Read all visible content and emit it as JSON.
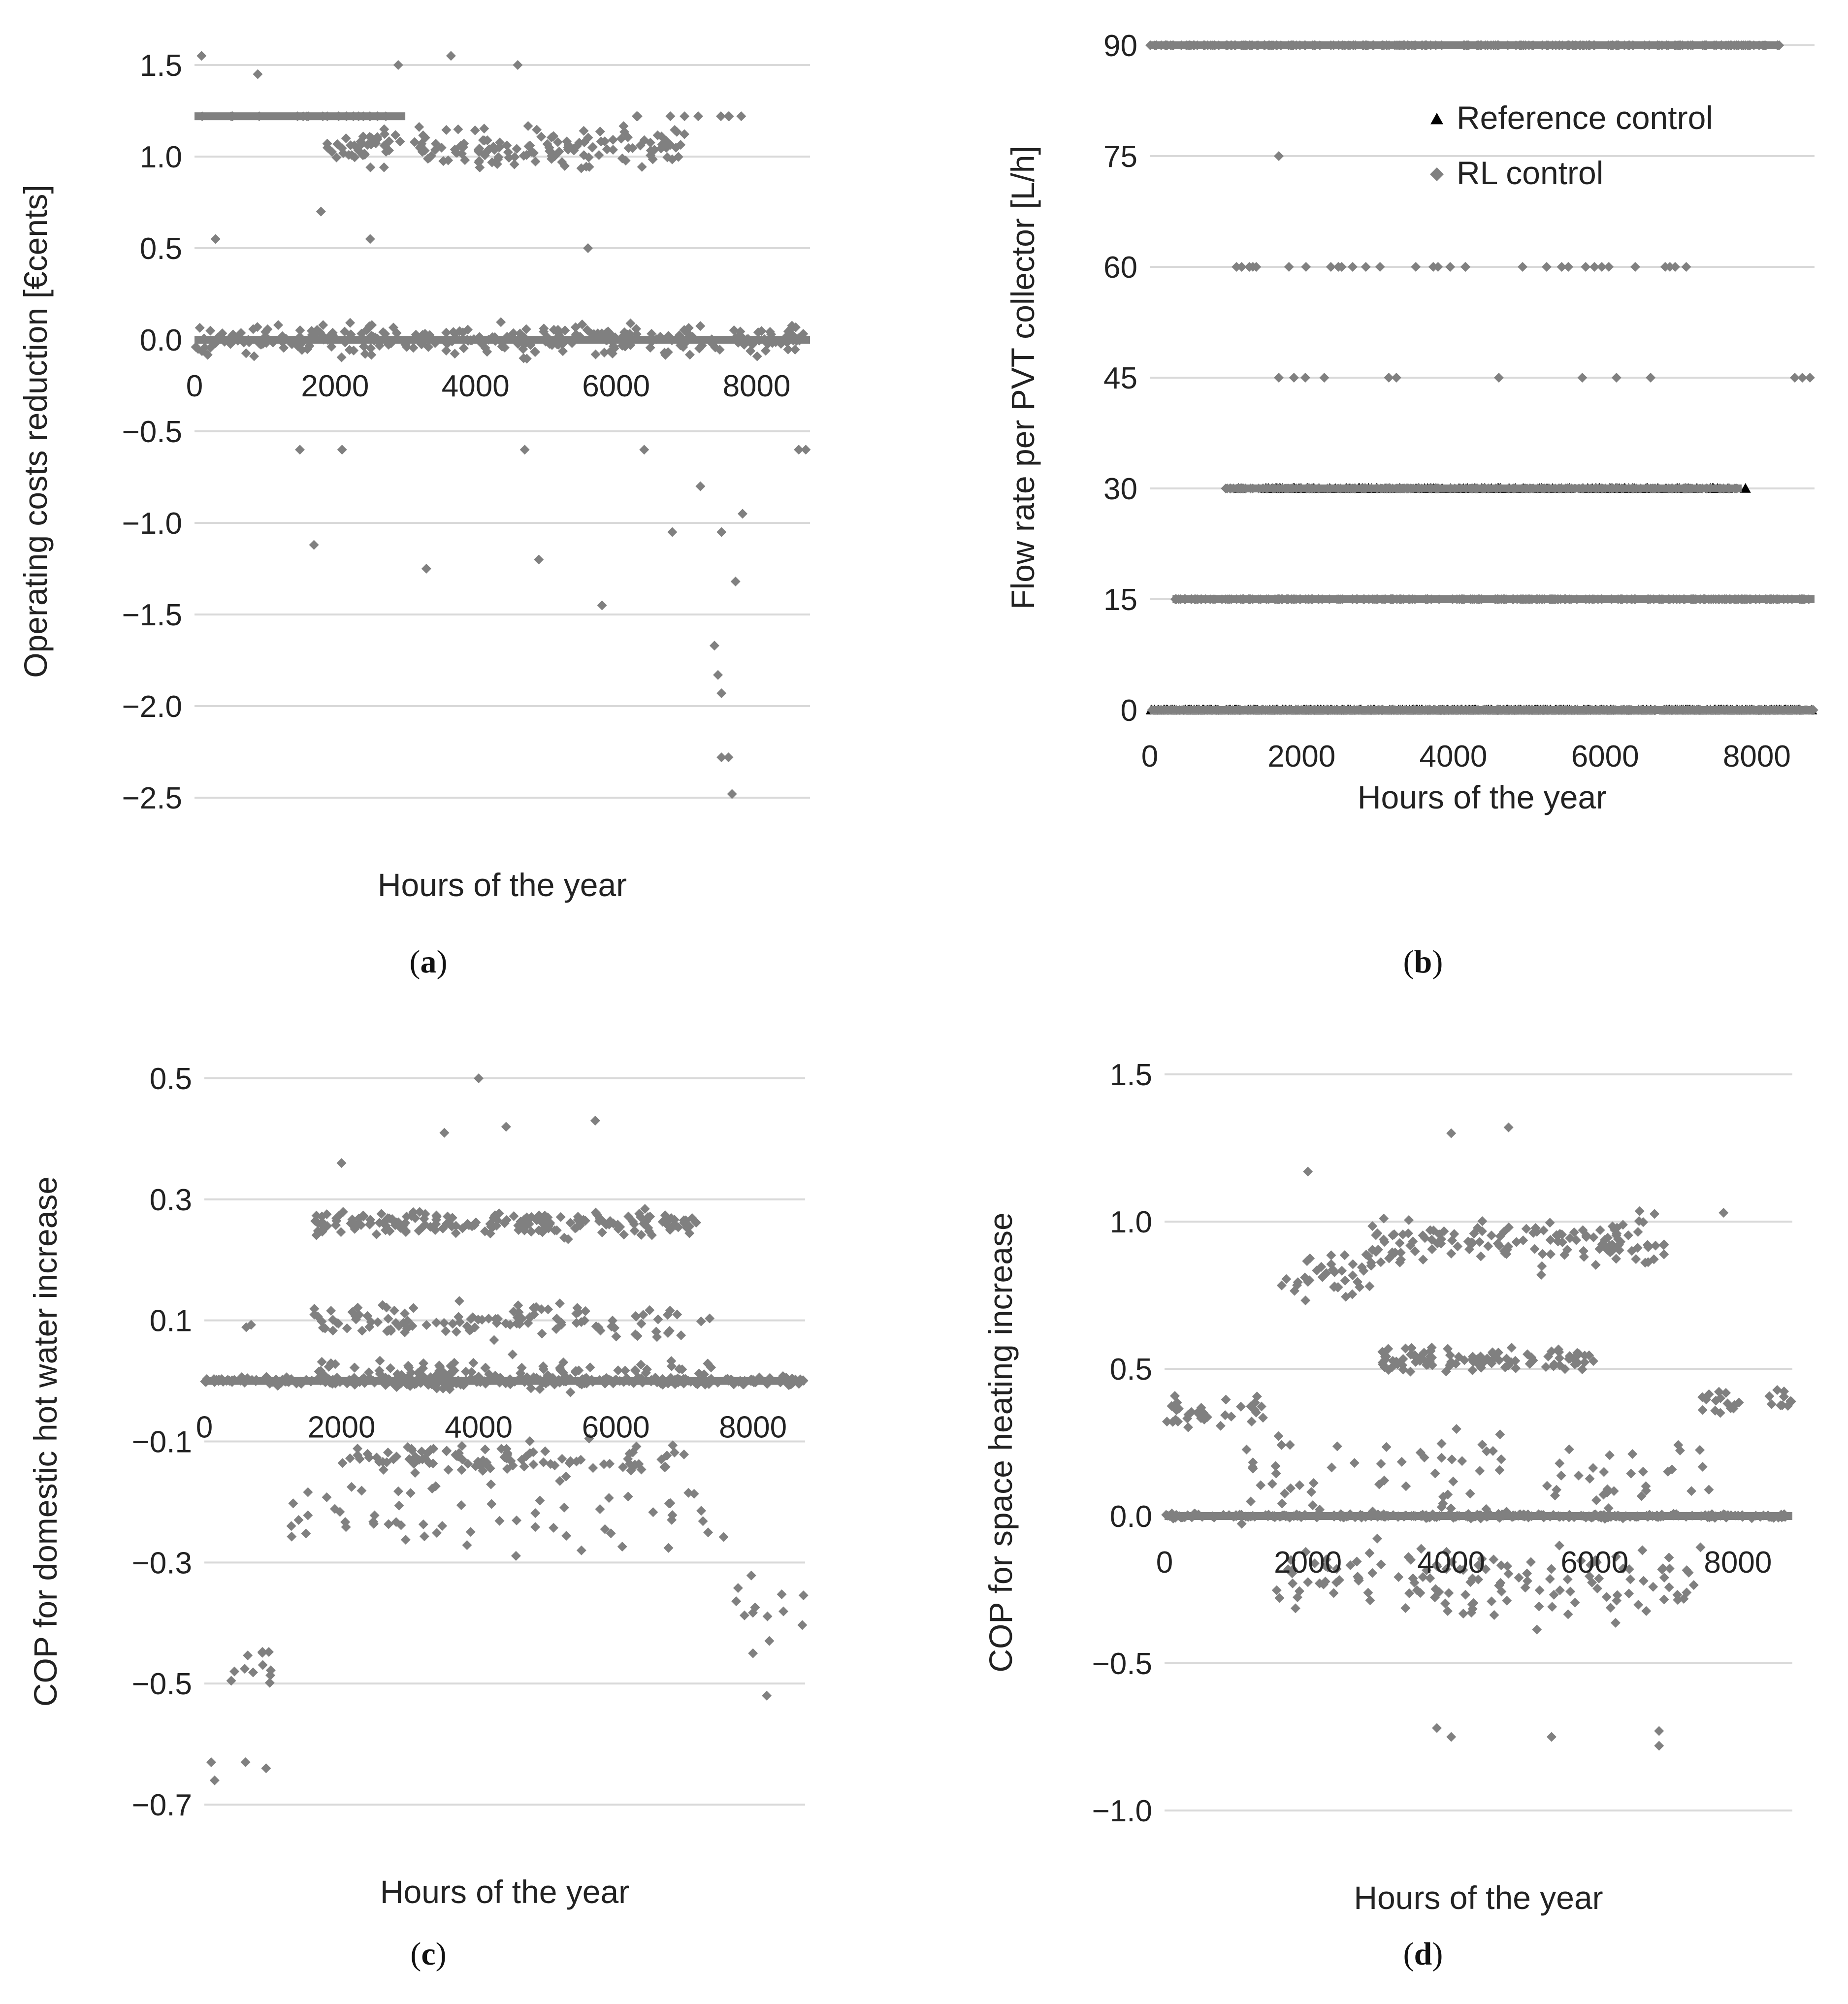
{
  "colors": {
    "grid": "#d9d9d9",
    "rl_marker": "#808080",
    "ref_marker": "#000000"
  },
  "chart_data": [
    {
      "id": "a",
      "type": "scatter",
      "caption_letter": "a",
      "xlabel": "Hours of the year",
      "ylabel": "Operating costs reduction [€cents]",
      "xlim": [
        0,
        8760
      ],
      "ylim": [
        -2.5,
        1.5
      ],
      "yticks": [
        1.5,
        1.0,
        0.5,
        0.0,
        -0.5,
        -1.0,
        -1.5,
        -2.0,
        -2.5
      ],
      "ytick_labels": [
        "1.5",
        "1.0",
        "0.5",
        "0.0",
        "−0.5",
        "−1.0",
        "−1.5",
        "−2.0",
        "−2.5"
      ],
      "xticks": [
        0,
        2000,
        4000,
        6000,
        8000
      ],
      "xtick_labels": [
        "0",
        "2000",
        "4000",
        "6000",
        "8000"
      ],
      "x_tick_labels_at_y": 0.0,
      "series": [
        {
          "name": "RL control",
          "marker": "diamond",
          "bands": [
            {
              "x": [
                0,
                8760
              ],
              "value": 0.0,
              "spread": 0.12,
              "density": 1.0,
              "line": true
            },
            {
              "x": [
                0,
                3000
              ],
              "value": 1.22,
              "spread": 0.0,
              "density": 0.2,
              "line": true
            },
            {
              "x": [
                1800,
                7000
              ],
              "value": 1.05,
              "spread": 0.15,
              "density": 1.0
            },
            {
              "x": [
                6000,
                7800
              ],
              "value": 1.22,
              "spread": 0.0,
              "density": 0.15
            }
          ],
          "extra_points": [
            [
              100,
              1.55
            ],
            [
              900,
              1.45
            ],
            [
              2900,
              1.5
            ],
            [
              3650,
              1.55
            ],
            [
              4600,
              1.5
            ],
            [
              1800,
              0.7
            ],
            [
              5600,
              0.5
            ],
            [
              300,
              0.55
            ],
            [
              2500,
              0.55
            ],
            [
              1700,
              -1.12
            ],
            [
              3300,
              -1.25
            ],
            [
              4900,
              -1.2
            ],
            [
              5800,
              -1.45
            ],
            [
              7200,
              -0.8
            ],
            [
              7500,
              -1.05
            ],
            [
              7800,
              -0.95
            ],
            [
              7700,
              -1.32
            ],
            [
              7400,
              -1.67
            ],
            [
              7450,
              -1.83
            ],
            [
              7500,
              -1.93
            ],
            [
              7500,
              -2.28
            ],
            [
              7600,
              -2.28
            ],
            [
              7650,
              -2.48
            ],
            [
              8600,
              -0.6
            ],
            [
              8700,
              -0.6
            ],
            [
              1500,
              -0.6
            ],
            [
              2100,
              -0.6
            ],
            [
              6400,
              -0.6
            ],
            [
              4700,
              -0.6
            ],
            [
              6800,
              -1.05
            ]
          ]
        }
      ]
    },
    {
      "id": "b",
      "type": "scatter",
      "caption_letter": "b",
      "xlabel": "Hours of the year",
      "ylabel": "Flow rate per PVT collector [L/h]",
      "xlim": [
        0,
        8760
      ],
      "ylim": [
        0,
        90
      ],
      "yticks": [
        90,
        75,
        60,
        45,
        30,
        15,
        0
      ],
      "ytick_labels": [
        "90",
        "75",
        "60",
        "45",
        "30",
        "15",
        "0"
      ],
      "xticks": [
        0,
        2000,
        4000,
        6000,
        8000
      ],
      "xtick_labels": [
        "0",
        "2000",
        "4000",
        "6000",
        "8000"
      ],
      "legend": {
        "position": "top-right",
        "entries": [
          {
            "label": "Reference control",
            "marker": "triangle"
          },
          {
            "label": "RL control",
            "marker": "diamond"
          }
        ]
      },
      "series": [
        {
          "name": "Reference control",
          "marker": "triangle",
          "bands": [
            {
              "x": [
                1150,
                7700
              ],
              "value": 30,
              "spread": 0,
              "density": 0.5,
              "line": true
            },
            {
              "x": [
                0,
                8760
              ],
              "value": 0,
              "spread": 0,
              "density": 1.0,
              "line": true
            }
          ],
          "extra_points": [
            [
              7850,
              30
            ]
          ]
        },
        {
          "name": "RL control",
          "marker": "diamond",
          "bands": [
            {
              "x": [
                0,
                8300
              ],
              "value": 90,
              "spread": 0,
              "density": 0.9,
              "line": true
            },
            {
              "x": [
                1000,
                7300
              ],
              "value": 60,
              "spread": 0,
              "density": 0.15
            },
            {
              "x": [
                300,
                8760
              ],
              "value": 15,
              "spread": 0,
              "density": 1.0,
              "line": true
            },
            {
              "x": [
                1000,
                7800
              ],
              "value": 30,
              "spread": 0,
              "density": 1.0,
              "line": true
            },
            {
              "x": [
                0,
                8760
              ],
              "value": 0,
              "spread": 0,
              "density": 1.0,
              "line": true
            }
          ],
          "extra_points": [
            [
              1700,
              75
            ],
            [
              1700,
              45
            ],
            [
              1900,
              45
            ],
            [
              2050,
              45
            ],
            [
              2300,
              45
            ],
            [
              3150,
              45
            ],
            [
              3250,
              45
            ],
            [
              4600,
              45
            ],
            [
              5700,
              45
            ],
            [
              6150,
              45
            ],
            [
              6600,
              45
            ],
            [
              8500,
              45
            ],
            [
              8600,
              45
            ],
            [
              8700,
              45
            ]
          ]
        }
      ]
    },
    {
      "id": "c",
      "type": "scatter",
      "caption_letter": "c",
      "xlabel": "Hours of the year",
      "ylabel": "COP for domestic hot water increase",
      "xlim": [
        0,
        8760
      ],
      "ylim": [
        -0.7,
        0.5
      ],
      "yticks": [
        0.5,
        0.3,
        0.1,
        -0.1,
        -0.3,
        -0.5,
        -0.7
      ],
      "ytick_labels": [
        "0.5",
        "0.3",
        "0.1",
        "−0.1",
        "−0.3",
        "−0.5",
        "−0.7"
      ],
      "xticks": [
        0,
        2000,
        4000,
        6000,
        8000
      ],
      "xtick_labels": [
        "0",
        "2000",
        "4000",
        "6000",
        "8000"
      ],
      "x_tick_labels_at_y": 0.0,
      "series": [
        {
          "name": "RL control",
          "marker": "diamond",
          "bands": [
            {
              "x": [
                0,
                8760
              ],
              "value": 0.0,
              "spread": 0.01,
              "density": 1.0,
              "line": true
            },
            {
              "x": [
                1600,
                7200
              ],
              "value": 0.26,
              "spread": 0.03,
              "density": 1.0
            },
            {
              "x": [
                1600,
                7400
              ],
              "value": 0.1,
              "spread": 0.04,
              "density": 0.6
            },
            {
              "x": [
                1600,
                7400
              ],
              "value": 0.01,
              "spread": 0.04,
              "density": 0.6
            },
            {
              "x": [
                2000,
                7000
              ],
              "value": -0.13,
              "spread": 0.04,
              "density": 0.6
            },
            {
              "x": [
                1200,
                7600
              ],
              "value": -0.22,
              "spread": 0.08,
              "density": 0.3
            },
            {
              "x": [
                200,
                1100
              ],
              "value": -0.47,
              "spread": 0.12,
              "density": 0.4
            },
            {
              "x": [
                7700,
                8760
              ],
              "value": -0.37,
              "spread": 0.08,
              "density": 0.35
            },
            {
              "x": [
                600,
                800
              ],
              "value": 0.09,
              "spread": 0.005,
              "density": 0.3
            }
          ],
          "extra_points": [
            [
              4000,
              0.5
            ],
            [
              5700,
              0.43
            ],
            [
              3500,
              0.41
            ],
            [
              4400,
              0.42
            ],
            [
              2000,
              0.36
            ],
            [
              100,
              -0.63
            ],
            [
              150,
              -0.66
            ],
            [
              600,
              -0.63
            ],
            [
              900,
              -0.64
            ],
            [
              8200,
              -0.52
            ],
            [
              8000,
              -0.45
            ]
          ]
        }
      ]
    },
    {
      "id": "d",
      "type": "scatter",
      "caption_letter": "d",
      "xlabel": "Hours of the year",
      "ylabel": "COP for space heating increase",
      "xlim": [
        0,
        8760
      ],
      "ylim": [
        -1.0,
        1.5
      ],
      "yticks": [
        1.5,
        1.0,
        0.5,
        0.0,
        -0.5,
        -1.0
      ],
      "ytick_labels": [
        "1.5",
        "1.0",
        "0.5",
        "0.0",
        "−0.5",
        "−1.0"
      ],
      "xticks": [
        0,
        2000,
        4000,
        6000,
        8000
      ],
      "xtick_labels": [
        "0",
        "2000",
        "4000",
        "6000",
        "8000"
      ],
      "x_tick_labels_at_y": 0.0,
      "series": [
        {
          "name": "RL control",
          "marker": "diamond",
          "bands": [
            {
              "x": [
                0,
                8760
              ],
              "value": 0.0,
              "spread": 0.01,
              "density": 1.0,
              "line": true
            },
            {
              "x": [
                1600,
                2900
              ],
              "value": 0.82,
              "spread": 0.12,
              "density": 0.9
            },
            {
              "x": [
                2900,
                7000
              ],
              "value": 0.93,
              "spread": 0.12,
              "density": 1.0
            },
            {
              "x": [
                3000,
                6000
              ],
              "value": 0.53,
              "spread": 0.06,
              "density": 1.0
            },
            {
              "x": [
                0,
                1500
              ],
              "value": 0.35,
              "spread": 0.07,
              "density": 0.7
            },
            {
              "x": [
                7500,
                8760
              ],
              "value": 0.38,
              "spread": 0.06,
              "density": 0.6
            },
            {
              "x": [
                1000,
                7600
              ],
              "value": 0.15,
              "spread": 0.25,
              "density": 0.4
            },
            {
              "x": [
                1500,
                7500
              ],
              "value": -0.22,
              "spread": 0.2,
              "density": 0.7
            }
          ],
          "extra_points": [
            [
              4000,
              1.3
            ],
            [
              4800,
              1.32
            ],
            [
              2000,
              1.17
            ],
            [
              7800,
              1.03
            ],
            [
              3800,
              -0.72
            ],
            [
              4000,
              -0.75
            ],
            [
              5400,
              -0.75
            ],
            [
              6900,
              -0.73
            ],
            [
              6900,
              -0.78
            ]
          ]
        }
      ]
    }
  ]
}
